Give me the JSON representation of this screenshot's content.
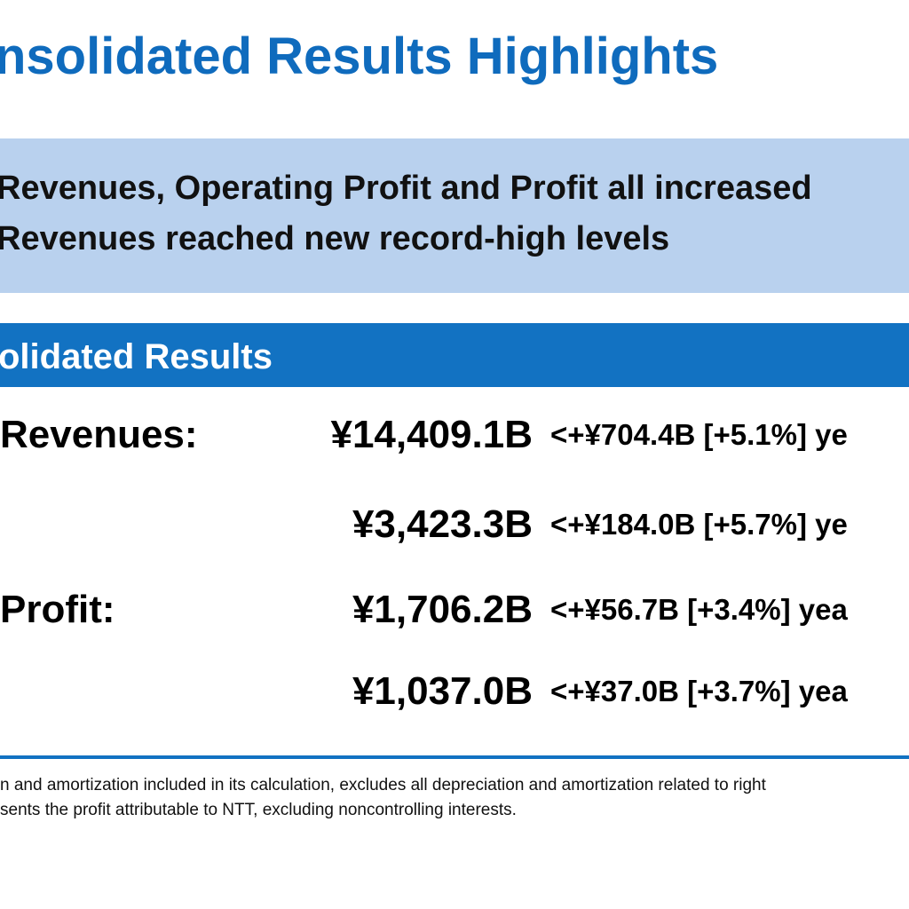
{
  "header": {
    "title": "nsolidated Results Highlights"
  },
  "summary": {
    "line1": "Revenues, Operating Profit and Profit all increased",
    "line2": "Revenues reached new record-high levels"
  },
  "section": {
    "title": "olidated Results"
  },
  "results": [
    {
      "label": "Revenues:",
      "value": "¥14,409.1B",
      "delta": "<+¥704.4B [+5.1%] ye"
    },
    {
      "label": "",
      "value": "¥3,423.3B",
      "delta": "<+¥184.0B [+5.7%] ye"
    },
    {
      "label": "Profit:",
      "value": "¥1,706.2B",
      "delta": "<+¥56.7B [+3.4%] yea"
    },
    {
      "label": "",
      "value": "¥1,037.0B",
      "delta": "<+¥37.0B [+3.7%] yea"
    }
  ],
  "footnotes": [
    "n and amortization included in its calculation, excludes all depreciation and amortization related to right",
    "sents the profit attributable to NTT, excluding noncontrolling interests."
  ],
  "colors": {
    "title_blue": "#0f6bbd",
    "summary_bg": "#b9d1ee",
    "section_bar": "#1272c2"
  }
}
